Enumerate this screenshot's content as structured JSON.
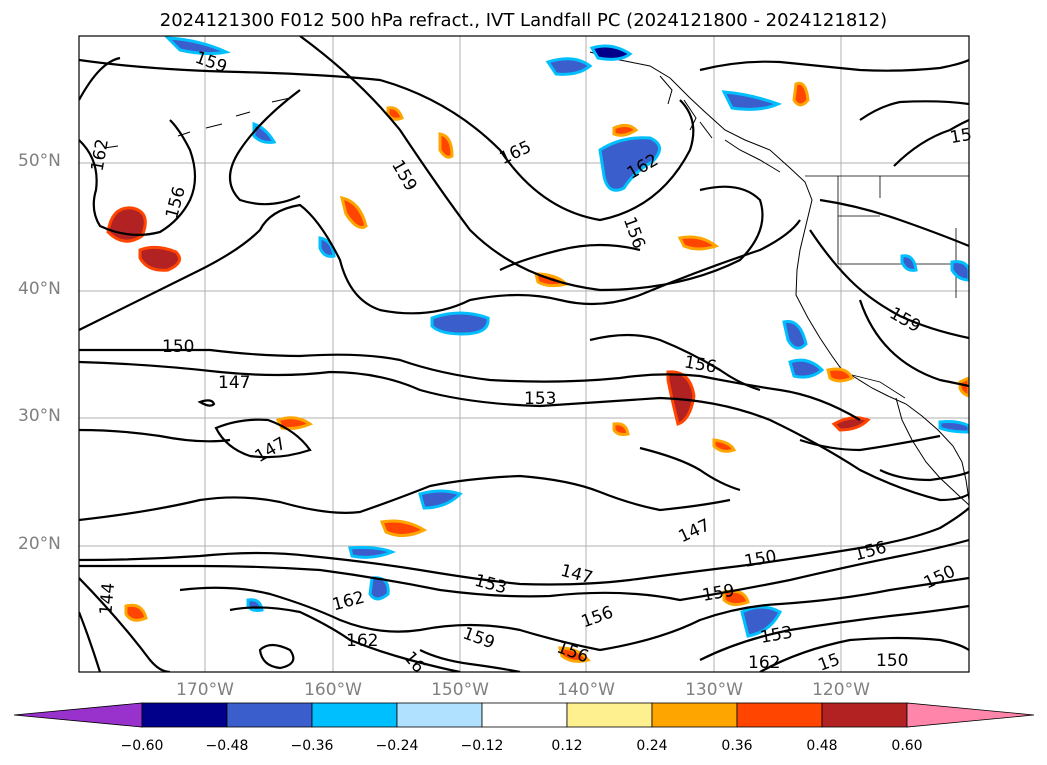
{
  "title": "2024121300 F012 500 hPa refract., IVT Landfall PC (2024121800 - 2024121812)",
  "latitude_labels": [
    "50°N",
    "40°N",
    "30°N",
    "20°N"
  ],
  "longitude_labels": [
    "170°W",
    "160°W",
    "150°W",
    "140°W",
    "130°W",
    "120°W"
  ],
  "contour_labels": [
    "159",
    "165",
    "162",
    "156",
    "159",
    "162",
    "156",
    "150",
    "147",
    "153",
    "156",
    "147",
    "159",
    "147",
    "150",
    "156",
    "150",
    "144",
    "162",
    "153",
    "162",
    "156",
    "159",
    "147",
    "159",
    "156",
    "153",
    "162",
    "15",
    "150",
    "16",
    "15"
  ],
  "colorbar": {
    "tick_labels": [
      "−0.60",
      "−0.48",
      "−0.36",
      "−0.24",
      "−0.12",
      "0.12",
      "0.24",
      "0.36",
      "0.48",
      "0.60"
    ],
    "colors": [
      "#9932cc",
      "#00008b",
      "#3a5fcd",
      "#00bfff",
      "#b0e2ff",
      "#ffffff",
      "#fff08f",
      "#ffa500",
      "#ff4500",
      "#b22222",
      "#ff85aa"
    ]
  }
}
